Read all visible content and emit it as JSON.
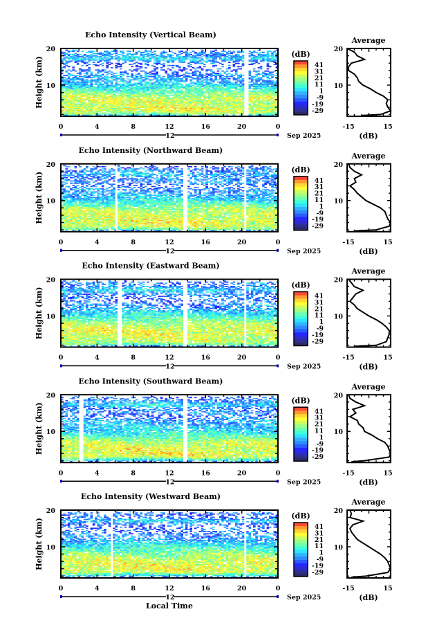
{
  "figure": {
    "x_axis_label": "Local Time",
    "date_day": "12",
    "date_month_year": "Sep 2025",
    "x_tick_labels": [
      "0",
      "4",
      "8",
      "12",
      "16",
      "20",
      "0"
    ],
    "y_axis_label": "Height (km)",
    "y_tick_labels": [
      "10",
      "20"
    ],
    "colorbar_unit": "(dB)",
    "colorbar_tick_labels": [
      "41",
      "31",
      "21",
      "11",
      "1",
      "-9",
      "-19",
      "-29"
    ],
    "avg_title": "Average",
    "avg_unit": "(dB)",
    "avg_tick_labels": [
      "-15",
      "15"
    ],
    "avg_y_tick_labels": [
      "10",
      "20"
    ]
  },
  "colors": {
    "colormap": [
      "#2b2a66",
      "#2f2f94",
      "#2b2bd0",
      "#2626ff",
      "#2a5cff",
      "#2f8cff",
      "#33b3ff",
      "#2fe3ff",
      "#3effd8",
      "#6dffb0",
      "#9dff86",
      "#caff62",
      "#ffff33",
      "#ffd633",
      "#ff9a33",
      "#ff4a33"
    ],
    "axis": "#000000",
    "date_marker": "#0000cc"
  },
  "chart_data": [
    {
      "type": "heatmap",
      "title": "Echo Intensity (Vertical Beam)",
      "x_range_hours": [
        0,
        24
      ],
      "y_range_km": [
        1.5,
        20
      ],
      "color_range_db": [
        -29,
        41
      ],
      "missing_time_ranges": [
        [
          20.3,
          20.6
        ]
      ],
      "profile": {
        "height_km": [
          1.7,
          2,
          3,
          4,
          5,
          6,
          7,
          8,
          9,
          10,
          11,
          12,
          13,
          14,
          15,
          16,
          17,
          18,
          19,
          20
        ],
        "avg_db": [
          -5,
          8,
          15,
          13,
          12,
          13,
          10,
          5,
          1,
          -4,
          -7,
          -8,
          -10,
          -14,
          -14,
          -12,
          -3,
          -8,
          -10,
          -15
        ],
        "x_range_db": [
          -15,
          15
        ]
      }
    },
    {
      "type": "heatmap",
      "title": "Echo Intensity (Northward Beam)",
      "x_range_hours": [
        0,
        24
      ],
      "y_range_km": [
        1.5,
        20
      ],
      "color_range_db": [
        -29,
        41
      ],
      "missing_time_ranges": [
        [
          6.0,
          6.2
        ],
        [
          13.5,
          14.0
        ],
        [
          20.3,
          20.5
        ]
      ],
      "profile": {
        "height_km": [
          1.7,
          2,
          3,
          4,
          5,
          6,
          7,
          8,
          9,
          10,
          11,
          12,
          13,
          14,
          15,
          16,
          17,
          18,
          19,
          20
        ],
        "avg_db": [
          -10,
          5,
          14,
          15,
          13,
          12,
          11,
          8,
          3,
          -2,
          -5,
          -8,
          -10,
          -13,
          -9,
          -10,
          -5,
          -10,
          -13,
          -14
        ],
        "x_range_db": [
          -15,
          15
        ]
      }
    },
    {
      "type": "heatmap",
      "title": "Echo Intensity (Eastward Beam)",
      "x_range_hours": [
        0,
        24
      ],
      "y_range_km": [
        1.5,
        20
      ],
      "color_range_db": [
        -29,
        41
      ],
      "missing_time_ranges": [
        [
          6.3,
          6.6
        ],
        [
          13.5,
          14.0
        ],
        [
          20.3,
          20.5
        ]
      ],
      "profile": {
        "height_km": [
          1.7,
          2,
          3,
          4,
          5,
          6,
          7,
          8,
          9,
          10,
          11,
          12,
          13,
          14,
          15,
          16,
          17,
          18,
          19,
          20
        ],
        "avg_db": [
          -10,
          5,
          12,
          13,
          14,
          14,
          12,
          9,
          5,
          0,
          -4,
          -8,
          -10,
          -13,
          -11,
          -9,
          -4,
          -10,
          -12,
          -14
        ],
        "x_range_db": [
          -15,
          15
        ]
      }
    },
    {
      "type": "heatmap",
      "title": "Echo Intensity (Southward Beam)",
      "x_range_hours": [
        0,
        24
      ],
      "y_range_km": [
        1.5,
        20
      ],
      "color_range_db": [
        -29,
        41
      ],
      "missing_time_ranges": [
        [
          2.0,
          2.3
        ],
        [
          13.5,
          13.8
        ]
      ],
      "profile": {
        "height_km": [
          1.7,
          2,
          3,
          4,
          5,
          6,
          7,
          8,
          9,
          10,
          11,
          12,
          13,
          14,
          15,
          16,
          17,
          18,
          19,
          20
        ],
        "avg_db": [
          -12,
          -3,
          14,
          15,
          14,
          13,
          11,
          6,
          2,
          -3,
          -4,
          -7,
          -8,
          -13,
          -9,
          -11,
          -3,
          -9,
          -13,
          -14
        ],
        "x_range_db": [
          -15,
          15
        ]
      }
    },
    {
      "type": "heatmap",
      "title": "Echo Intensity (Westward Beam)",
      "x_range_hours": [
        0,
        24
      ],
      "y_range_km": [
        1.5,
        20
      ],
      "color_range_db": [
        -29,
        41
      ],
      "missing_time_ranges": [
        [
          5.5,
          5.7
        ],
        [
          20.3,
          20.5
        ]
      ],
      "profile": {
        "height_km": [
          1.7,
          2,
          3,
          4,
          5,
          6,
          7,
          8,
          9,
          10,
          11,
          12,
          13,
          14,
          15,
          16,
          17,
          18,
          19,
          20
        ],
        "avg_db": [
          -12,
          -2,
          13,
          15,
          14,
          13,
          11,
          8,
          4,
          0,
          -4,
          -8,
          -10,
          -12,
          -13,
          -11,
          -4,
          -13,
          -12,
          -13
        ],
        "x_range_db": [
          -15,
          15
        ]
      }
    }
  ]
}
